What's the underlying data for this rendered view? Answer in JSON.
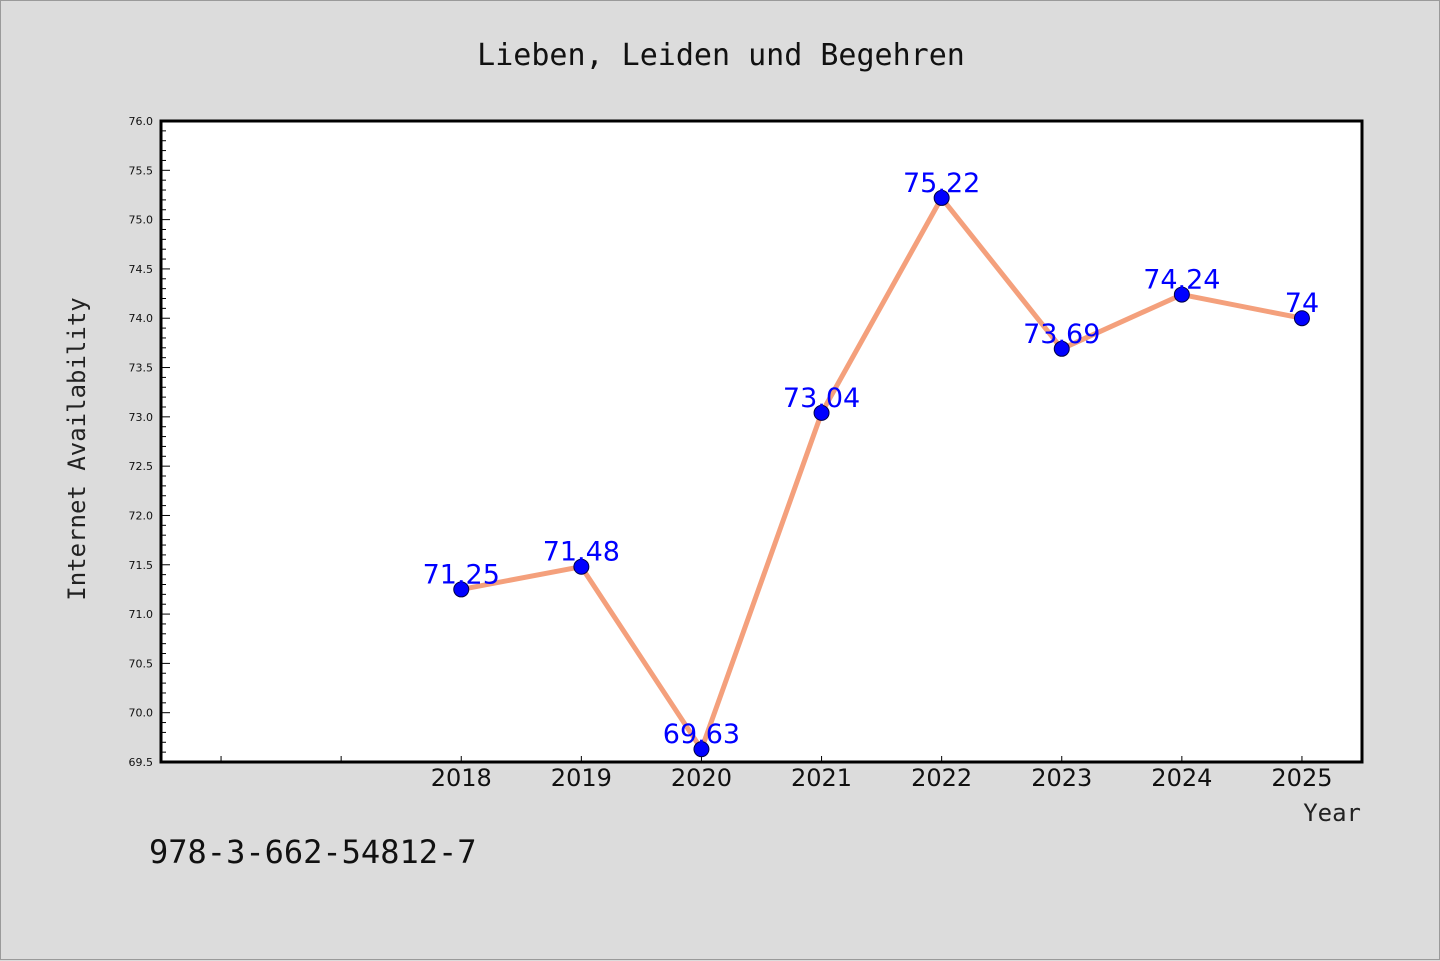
{
  "footnote": "978-3-662-54812-7",
  "chart_data": {
    "type": "line",
    "title": "Lieben, Leiden und Begehren",
    "xlabel": "Year",
    "ylabel": "Internet Availability",
    "x": [
      2018,
      2019,
      2020,
      2021,
      2022,
      2023,
      2024,
      2025
    ],
    "series": [
      {
        "values": [
          71.25,
          71.48,
          69.63,
          73.04,
          75.22,
          73.69,
          74.24,
          74.0
        ]
      }
    ],
    "data_labels": [
      "71.25",
      "71.48",
      "69.63",
      "73.04",
      "75.22",
      "73.69",
      "74.24",
      "74"
    ],
    "ylim": [
      69.5,
      76.0
    ],
    "xlim": [
      2015.5,
      2025.5
    ],
    "y_ticks": [
      "69.5",
      "70.0",
      "70.5",
      "71.0",
      "71.5",
      "72.0",
      "72.5",
      "73.0",
      "73.5",
      "74.0",
      "74.5",
      "75.0",
      "75.5",
      "76.0"
    ],
    "x_ticks": [
      "2018",
      "2019",
      "2020",
      "2021",
      "2022",
      "2023",
      "2024",
      "2025"
    ],
    "grid": false,
    "legend": "none",
    "colors": {
      "line": "#f4a07c",
      "marker": "#0000ff",
      "label": "#0000ff",
      "background": "#dcdcdc",
      "plot_background": "#ffffff"
    }
  }
}
